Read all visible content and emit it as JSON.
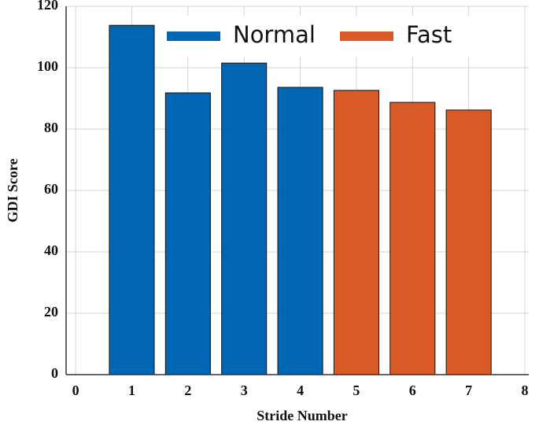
{
  "chart_data": {
    "type": "bar",
    "xlabel": "Stride Number",
    "ylabel": "GDI Score",
    "series": [
      {
        "name": "Normal",
        "color": "#0066b4",
        "x": [
          1,
          2,
          3,
          4
        ],
        "values": [
          113.8,
          91.8,
          101.5,
          93.6
        ]
      },
      {
        "name": "Fast",
        "color": "#d95a27",
        "x": [
          5,
          6,
          7
        ],
        "values": [
          92.6,
          88.7,
          86.2
        ]
      }
    ],
    "xlim": [
      -0.17,
      8.07
    ],
    "xticks": [
      0,
      1,
      2,
      3,
      4,
      5,
      6,
      7,
      8
    ],
    "ylim": [
      0,
      120
    ],
    "yticks": [
      0,
      20,
      40,
      60,
      80,
      100,
      120
    ],
    "grid": true,
    "legend": "upper right",
    "bar_width": 0.8
  }
}
